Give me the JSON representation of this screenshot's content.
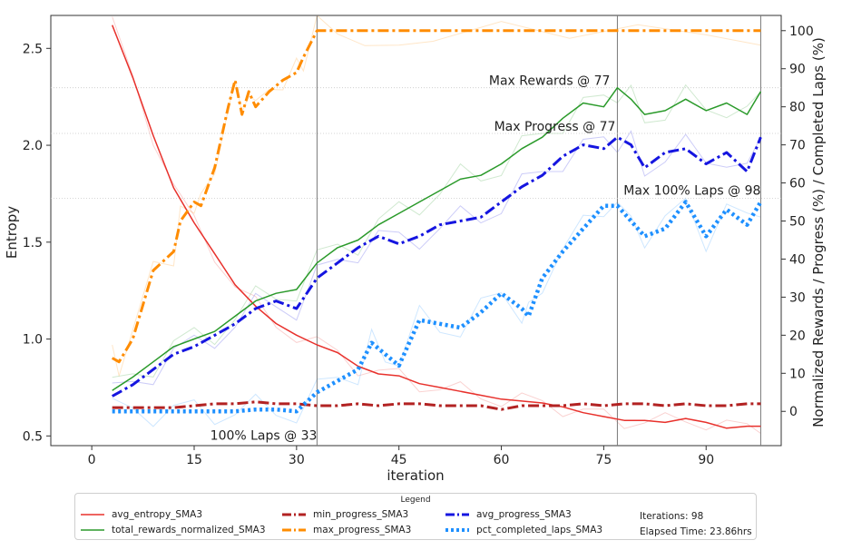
{
  "chart_data": {
    "type": "line",
    "xlabel": "iteration",
    "ylabel_left": "Entropy",
    "ylabel_right": "Normalized Rewards / Progress (%) / Completed Laps (%)",
    "xlim": [
      -6,
      101
    ],
    "ylim_left": [
      0.45,
      2.67
    ],
    "ylim_right": [
      -9,
      104
    ],
    "x_ticks": [
      0,
      15,
      30,
      45,
      60,
      75,
      90
    ],
    "y_left_ticks": [
      0.5,
      1.0,
      1.5,
      2.0,
      2.5
    ],
    "y_right_ticks": [
      0,
      10,
      20,
      30,
      40,
      50,
      60,
      70,
      80,
      90,
      100
    ],
    "grid": false,
    "colors": {
      "avg_entropy": "#e8312c",
      "total_rewards": "#2a9a2a",
      "min_progress": "#b22222",
      "max_progress": "#ff8c00",
      "avg_progress": "#1515e0",
      "pct_completed": "#1e90ff"
    },
    "annotations": [
      {
        "text": "Max Rewards @ 77",
        "x": 77,
        "axis": "right",
        "y": 85
      },
      {
        "text": "Max Progress @ 77",
        "x": 77,
        "axis": "right",
        "y": 73
      },
      {
        "text": "Max 100% Laps @ 98",
        "x": 98,
        "axis": "right",
        "y": 56
      },
      {
        "text": "100% Laps @ 33",
        "x": 33,
        "axis": "right",
        "y": -6.5
      }
    ],
    "vlines": [
      33,
      77,
      98
    ],
    "series": [
      {
        "name": "avg_entropy_SMA3",
        "axis": "left",
        "style": "solid",
        "x": [
          3,
          6,
          9,
          12,
          15,
          18,
          21,
          24,
          27,
          30,
          33,
          36,
          39,
          42,
          45,
          48,
          51,
          54,
          57,
          60,
          63,
          66,
          69,
          72,
          75,
          78,
          81,
          84,
          87,
          90,
          93,
          96,
          98
        ],
        "values": [
          2.62,
          2.35,
          2.05,
          1.78,
          1.6,
          1.44,
          1.28,
          1.17,
          1.08,
          1.02,
          0.97,
          0.93,
          0.86,
          0.82,
          0.81,
          0.77,
          0.75,
          0.73,
          0.71,
          0.69,
          0.68,
          0.67,
          0.65,
          0.62,
          0.6,
          0.58,
          0.58,
          0.57,
          0.59,
          0.57,
          0.54,
          0.55,
          0.55
        ]
      },
      {
        "name": "total_rewards_normalized_SMA3",
        "axis": "right",
        "style": "solid",
        "x": [
          3,
          6,
          9,
          12,
          15,
          18,
          21,
          24,
          27,
          30,
          33,
          36,
          39,
          42,
          45,
          48,
          51,
          54,
          57,
          60,
          63,
          66,
          69,
          72,
          75,
          77,
          79,
          81,
          84,
          87,
          90,
          93,
          96,
          98
        ],
        "values": [
          5.5,
          9,
          13,
          17,
          19,
          21,
          25,
          29,
          31,
          32,
          39,
          43,
          45,
          49,
          52,
          55,
          58,
          61,
          62,
          65,
          69,
          72,
          77,
          81,
          80,
          85,
          82,
          78,
          79,
          82,
          79,
          81,
          78,
          84
        ]
      },
      {
        "name": "min_progress_SMA3",
        "axis": "right",
        "style": "dashdot",
        "x": [
          3,
          6,
          9,
          12,
          15,
          18,
          21,
          24,
          27,
          30,
          33,
          36,
          39,
          42,
          45,
          48,
          51,
          54,
          57,
          60,
          63,
          66,
          69,
          72,
          75,
          78,
          81,
          84,
          87,
          90,
          93,
          96,
          98
        ],
        "values": [
          1,
          1,
          1,
          1,
          1.5,
          2,
          2,
          2.5,
          2,
          2,
          1.5,
          1.5,
          2,
          1.5,
          2,
          2,
          1.5,
          1.5,
          1.5,
          0.5,
          1.5,
          1.5,
          1.5,
          2,
          1.5,
          2,
          2,
          1.5,
          2,
          1.5,
          1.5,
          2,
          2
        ]
      },
      {
        "name": "max_progress_SMA3",
        "axis": "right",
        "style": "dashdot",
        "x": [
          3,
          4,
          6,
          9,
          12,
          13,
          15,
          16,
          18,
          20,
          21,
          22,
          23,
          24,
          26,
          28,
          30,
          31,
          33,
          36,
          40,
          45,
          50,
          60,
          70,
          80,
          90,
          98
        ],
        "values": [
          14,
          13,
          19,
          37,
          42,
          50,
          55,
          54,
          64,
          80,
          87,
          78,
          84,
          80,
          84,
          87,
          89,
          93,
          100,
          100,
          100,
          100,
          100,
          100,
          100,
          100,
          100,
          100
        ]
      },
      {
        "name": "avg_progress_SMA3",
        "axis": "right",
        "style": "dashdot",
        "x": [
          3,
          6,
          9,
          12,
          15,
          18,
          21,
          24,
          27,
          30,
          33,
          36,
          39,
          42,
          45,
          48,
          51,
          54,
          57,
          60,
          63,
          66,
          69,
          72,
          75,
          77,
          79,
          81,
          84,
          87,
          90,
          93,
          96,
          98
        ],
        "values": [
          4,
          7,
          11,
          15,
          17,
          20,
          23,
          27,
          29,
          27,
          35,
          39,
          43,
          46,
          44,
          46,
          49,
          50,
          51,
          55,
          59,
          62,
          67,
          70,
          69,
          72,
          70,
          64,
          68,
          69,
          65,
          68,
          63,
          72
        ]
      },
      {
        "name": "pct_completed_laps_SMA3",
        "axis": "right",
        "style": "dotted",
        "x": [
          3,
          6,
          9,
          12,
          15,
          18,
          21,
          24,
          27,
          30,
          33,
          36,
          39,
          41,
          43,
          45,
          48,
          51,
          54,
          57,
          60,
          63,
          64,
          66,
          69,
          72,
          75,
          77,
          79,
          81,
          84,
          87,
          90,
          93,
          96,
          98
        ],
        "values": [
          0,
          0,
          0,
          0,
          0,
          0,
          0,
          0.5,
          0.5,
          0,
          5,
          8,
          11,
          18,
          15,
          12,
          24,
          23,
          22,
          26,
          31,
          27,
          25,
          35,
          42,
          48,
          54,
          54,
          50,
          46,
          48,
          55,
          46,
          53,
          49,
          55
        ]
      }
    ]
  },
  "legend": {
    "title": "Legend",
    "items": [
      "avg_entropy_SMA3",
      "total_rewards_normalized_SMA3",
      "min_progress_SMA3",
      "max_progress_SMA3",
      "avg_progress_SMA3",
      "pct_completed_laps_SMA3"
    ],
    "iterations": "Iterations: 98",
    "elapsed": "Elapsed Time: 23.86hrs"
  }
}
